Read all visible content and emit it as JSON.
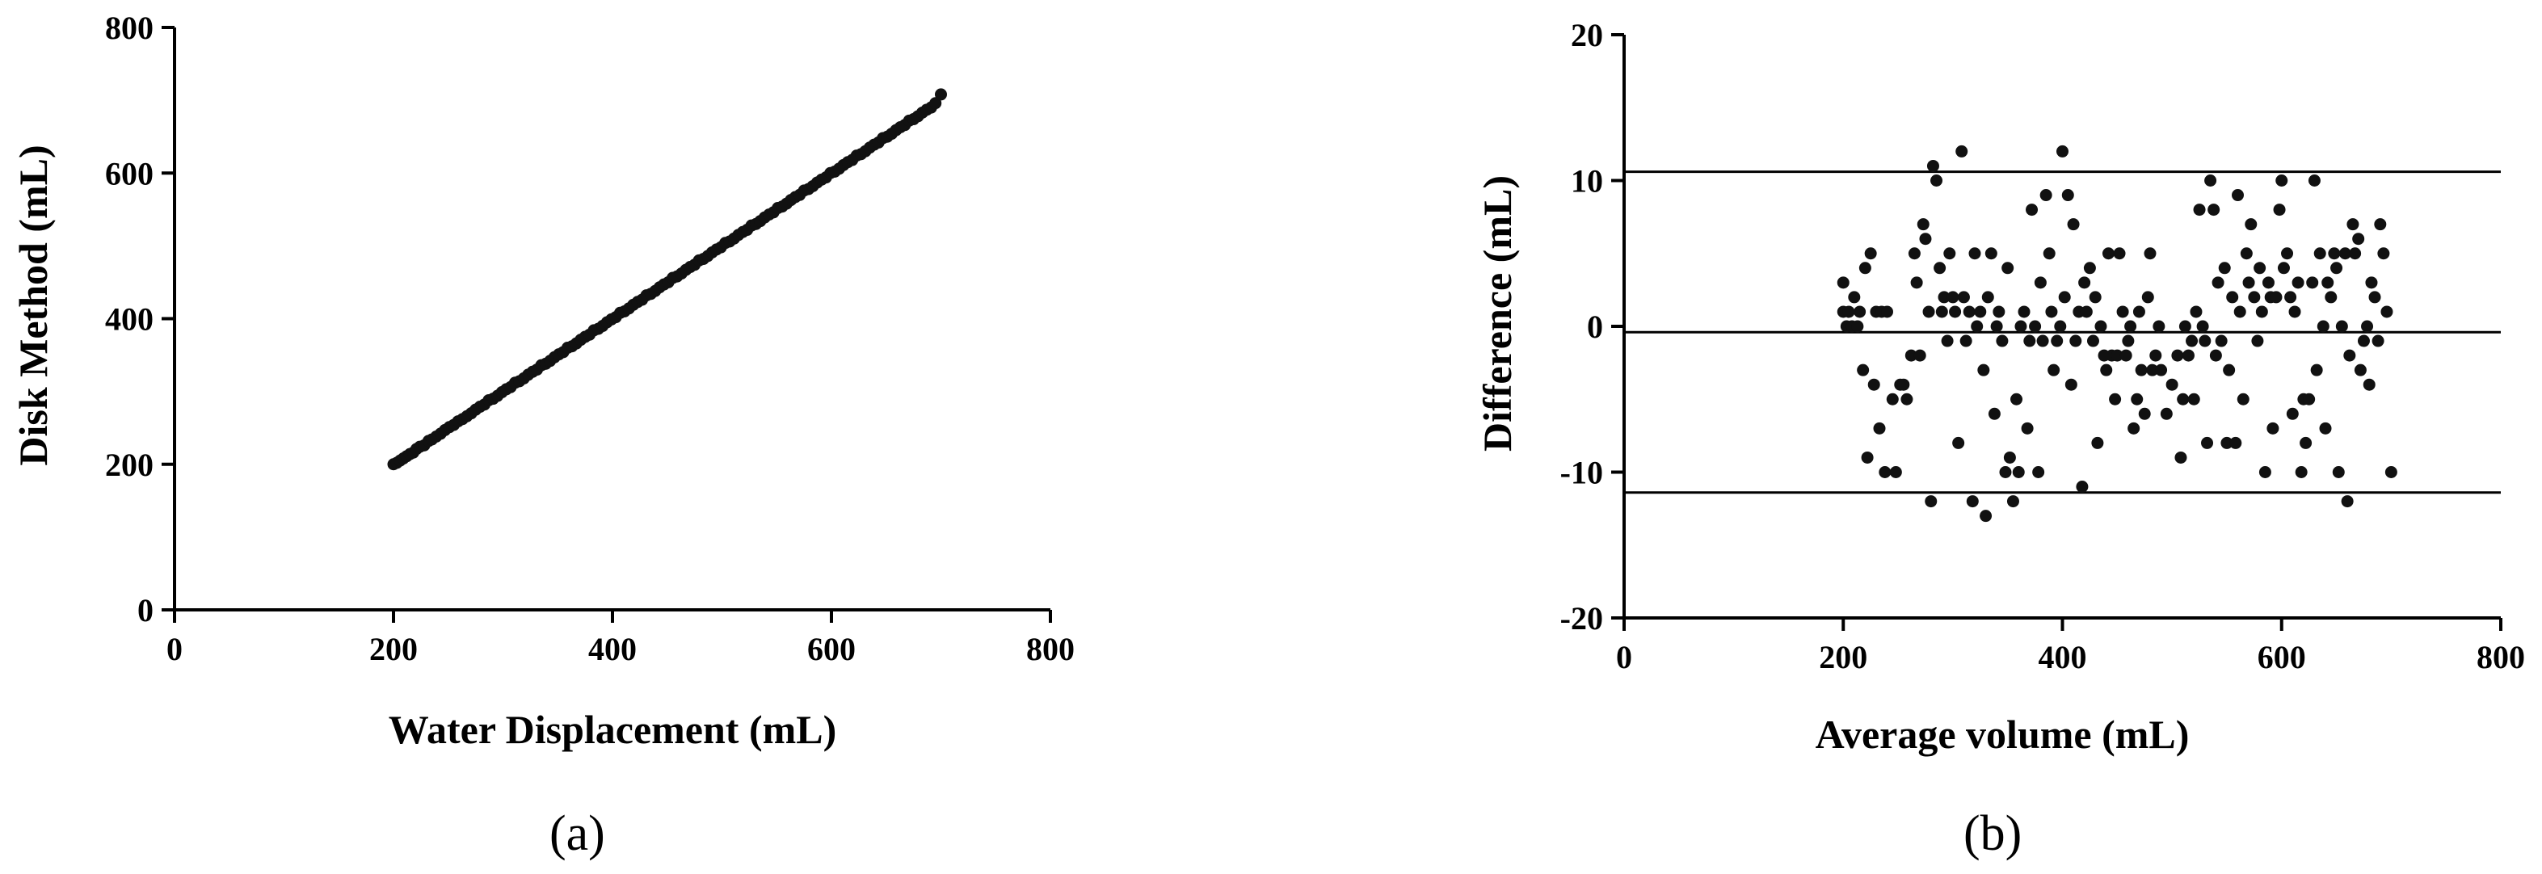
{
  "chart_data": [
    {
      "type": "scatter",
      "panel_label": "(a)",
      "title": "",
      "xlabel": "Water Displacement (mL)",
      "ylabel": "Disk Method (mL)",
      "xlim": [
        0,
        800
      ],
      "ylim": [
        0,
        800
      ],
      "xticks": [
        0,
        200,
        400,
        600,
        800
      ],
      "yticks": [
        0,
        200,
        400,
        600,
        800
      ],
      "grid": false,
      "color": "#111111",
      "points": [
        [
          200,
          200
        ],
        [
          203,
          202
        ],
        [
          206,
          205
        ],
        [
          209,
          208
        ],
        [
          212,
          211
        ],
        [
          215,
          214
        ],
        [
          218,
          216
        ],
        [
          221,
          221
        ],
        [
          224,
          224
        ],
        [
          228,
          226
        ],
        [
          232,
          232
        ],
        [
          235,
          234
        ],
        [
          239,
          238
        ],
        [
          243,
          242
        ],
        [
          247,
          247
        ],
        [
          251,
          251
        ],
        [
          255,
          254
        ],
        [
          259,
          259
        ],
        [
          263,
          262
        ],
        [
          267,
          266
        ],
        [
          271,
          270
        ],
        [
          275,
          275
        ],
        [
          279,
          279
        ],
        [
          283,
          282
        ],
        [
          287,
          288
        ],
        [
          291,
          290
        ],
        [
          295,
          294
        ],
        [
          299,
          299
        ],
        [
          303,
          303
        ],
        [
          307,
          306
        ],
        [
          311,
          312
        ],
        [
          315,
          314
        ],
        [
          319,
          318
        ],
        [
          323,
          323
        ],
        [
          327,
          327
        ],
        [
          331,
          330
        ],
        [
          335,
          336
        ],
        [
          339,
          338
        ],
        [
          343,
          342
        ],
        [
          347,
          347
        ],
        [
          351,
          351
        ],
        [
          355,
          354
        ],
        [
          359,
          360
        ],
        [
          363,
          362
        ],
        [
          367,
          366
        ],
        [
          371,
          371
        ],
        [
          375,
          375
        ],
        [
          379,
          378
        ],
        [
          383,
          384
        ],
        [
          387,
          386
        ],
        [
          391,
          390
        ],
        [
          395,
          395
        ],
        [
          399,
          399
        ],
        [
          403,
          402
        ],
        [
          407,
          408
        ],
        [
          411,
          410
        ],
        [
          415,
          414
        ],
        [
          419,
          419
        ],
        [
          423,
          423
        ],
        [
          427,
          426
        ],
        [
          431,
          432
        ],
        [
          435,
          434
        ],
        [
          439,
          438
        ],
        [
          443,
          443
        ],
        [
          447,
          447
        ],
        [
          451,
          450
        ],
        [
          455,
          456
        ],
        [
          459,
          458
        ],
        [
          463,
          462
        ],
        [
          467,
          467
        ],
        [
          471,
          471
        ],
        [
          475,
          474
        ],
        [
          479,
          480
        ],
        [
          483,
          482
        ],
        [
          487,
          486
        ],
        [
          491,
          491
        ],
        [
          495,
          495
        ],
        [
          499,
          498
        ],
        [
          503,
          504
        ],
        [
          507,
          506
        ],
        [
          511,
          510
        ],
        [
          515,
          515
        ],
        [
          519,
          519
        ],
        [
          523,
          522
        ],
        [
          527,
          528
        ],
        [
          531,
          530
        ],
        [
          535,
          534
        ],
        [
          539,
          539
        ],
        [
          543,
          543
        ],
        [
          547,
          546
        ],
        [
          551,
          552
        ],
        [
          555,
          554
        ],
        [
          559,
          558
        ],
        [
          563,
          563
        ],
        [
          567,
          567
        ],
        [
          571,
          570
        ],
        [
          575,
          576
        ],
        [
          579,
          578
        ],
        [
          583,
          582
        ],
        [
          587,
          587
        ],
        [
          591,
          591
        ],
        [
          595,
          594
        ],
        [
          599,
          600
        ],
        [
          603,
          602
        ],
        [
          607,
          606
        ],
        [
          611,
          611
        ],
        [
          615,
          615
        ],
        [
          619,
          618
        ],
        [
          623,
          624
        ],
        [
          627,
          626
        ],
        [
          631,
          630
        ],
        [
          635,
          635
        ],
        [
          639,
          639
        ],
        [
          643,
          642
        ],
        [
          647,
          648
        ],
        [
          651,
          650
        ],
        [
          655,
          654
        ],
        [
          659,
          659
        ],
        [
          663,
          663
        ],
        [
          667,
          666
        ],
        [
          671,
          672
        ],
        [
          675,
          674
        ],
        [
          679,
          678
        ],
        [
          683,
          683
        ],
        [
          687,
          687
        ],
        [
          691,
          690
        ],
        [
          695,
          696
        ],
        [
          700,
          708
        ]
      ]
    },
    {
      "type": "scatter",
      "panel_label": "(b)",
      "title": "",
      "xlabel": "Average volume (mL)",
      "ylabel": "Difference (mL)",
      "xlim": [
        0,
        800
      ],
      "ylim": [
        -20,
        20
      ],
      "xticks": [
        0,
        200,
        400,
        600,
        800
      ],
      "yticks": [
        -20,
        -10,
        0,
        10,
        20
      ],
      "grid": false,
      "color": "#111111",
      "reference_lines": [
        10.6,
        -0.4,
        -11.4
      ],
      "points": [
        [
          200,
          1
        ],
        [
          200,
          3
        ],
        [
          203,
          0
        ],
        [
          205,
          1
        ],
        [
          208,
          0
        ],
        [
          210,
          2
        ],
        [
          213,
          0
        ],
        [
          215,
          1
        ],
        [
          218,
          -3
        ],
        [
          220,
          4
        ],
        [
          222,
          -9
        ],
        [
          225,
          5
        ],
        [
          228,
          -4
        ],
        [
          230,
          1
        ],
        [
          233,
          -7
        ],
        [
          235,
          1
        ],
        [
          238,
          -10
        ],
        [
          240,
          1
        ],
        [
          245,
          -5
        ],
        [
          248,
          -10
        ],
        [
          252,
          -4
        ],
        [
          255,
          -4
        ],
        [
          258,
          -5
        ],
        [
          262,
          -2
        ],
        [
          265,
          5
        ],
        [
          267,
          3
        ],
        [
          270,
          -2
        ],
        [
          273,
          7
        ],
        [
          275,
          6
        ],
        [
          278,
          1
        ],
        [
          280,
          -12
        ],
        [
          282,
          11
        ],
        [
          285,
          10
        ],
        [
          288,
          4
        ],
        [
          290,
          1
        ],
        [
          292,
          2
        ],
        [
          295,
          -1
        ],
        [
          297,
          5
        ],
        [
          300,
          2
        ],
        [
          302,
          1
        ],
        [
          305,
          -8
        ],
        [
          308,
          12
        ],
        [
          310,
          2
        ],
        [
          312,
          -1
        ],
        [
          315,
          1
        ],
        [
          318,
          -12
        ],
        [
          320,
          5
        ],
        [
          322,
          0
        ],
        [
          325,
          1
        ],
        [
          328,
          -3
        ],
        [
          330,
          -13
        ],
        [
          332,
          2
        ],
        [
          335,
          5
        ],
        [
          338,
          -6
        ],
        [
          340,
          0
        ],
        [
          342,
          1
        ],
        [
          345,
          -1
        ],
        [
          348,
          -10
        ],
        [
          350,
          4
        ],
        [
          352,
          -9
        ],
        [
          355,
          -12
        ],
        [
          358,
          -5
        ],
        [
          360,
          -10
        ],
        [
          362,
          0
        ],
        [
          365,
          1
        ],
        [
          368,
          -7
        ],
        [
          370,
          -1
        ],
        [
          372,
          8
        ],
        [
          375,
          0
        ],
        [
          378,
          -10
        ],
        [
          380,
          3
        ],
        [
          382,
          -1
        ],
        [
          385,
          9
        ],
        [
          388,
          5
        ],
        [
          390,
          1
        ],
        [
          392,
          -3
        ],
        [
          395,
          -1
        ],
        [
          398,
          0
        ],
        [
          400,
          12
        ],
        [
          402,
          2
        ],
        [
          405,
          9
        ],
        [
          408,
          -4
        ],
        [
          410,
          7
        ],
        [
          412,
          -1
        ],
        [
          415,
          1
        ],
        [
          418,
          -11
        ],
        [
          420,
          3
        ],
        [
          422,
          1
        ],
        [
          425,
          4
        ],
        [
          428,
          -1
        ],
        [
          430,
          2
        ],
        [
          432,
          -8
        ],
        [
          435,
          0
        ],
        [
          438,
          -2
        ],
        [
          440,
          -3
        ],
        [
          442,
          5
        ],
        [
          445,
          -2
        ],
        [
          448,
          -5
        ],
        [
          450,
          -2
        ],
        [
          452,
          5
        ],
        [
          455,
          1
        ],
        [
          458,
          -2
        ],
        [
          460,
          -1
        ],
        [
          462,
          0
        ],
        [
          465,
          -7
        ],
        [
          468,
          -5
        ],
        [
          470,
          1
        ],
        [
          472,
          -3
        ],
        [
          475,
          -6
        ],
        [
          478,
          2
        ],
        [
          480,
          5
        ],
        [
          482,
          -3
        ],
        [
          485,
          -2
        ],
        [
          488,
          0
        ],
        [
          490,
          -3
        ],
        [
          495,
          -6
        ],
        [
          500,
          -4
        ],
        [
          505,
          -2
        ],
        [
          508,
          -9
        ],
        [
          510,
          -5
        ],
        [
          512,
          0
        ],
        [
          515,
          -2
        ],
        [
          518,
          -1
        ],
        [
          520,
          -5
        ],
        [
          522,
          1
        ],
        [
          525,
          8
        ],
        [
          528,
          0
        ],
        [
          530,
          -1
        ],
        [
          532,
          -8
        ],
        [
          535,
          10
        ],
        [
          538,
          8
        ],
        [
          540,
          -2
        ],
        [
          542,
          3
        ],
        [
          545,
          -1
        ],
        [
          548,
          4
        ],
        [
          550,
          -8
        ],
        [
          552,
          -3
        ],
        [
          555,
          2
        ],
        [
          558,
          -8
        ],
        [
          560,
          9
        ],
        [
          562,
          1
        ],
        [
          565,
          -5
        ],
        [
          568,
          5
        ],
        [
          570,
          3
        ],
        [
          572,
          7
        ],
        [
          575,
          2
        ],
        [
          578,
          -1
        ],
        [
          580,
          4
        ],
        [
          582,
          1
        ],
        [
          585,
          -10
        ],
        [
          588,
          3
        ],
        [
          590,
          2
        ],
        [
          592,
          -7
        ],
        [
          595,
          2
        ],
        [
          598,
          8
        ],
        [
          600,
          10
        ],
        [
          602,
          4
        ],
        [
          605,
          5
        ],
        [
          608,
          2
        ],
        [
          610,
          -6
        ],
        [
          612,
          1
        ],
        [
          615,
          3
        ],
        [
          618,
          -10
        ],
        [
          620,
          -5
        ],
        [
          622,
          -8
        ],
        [
          625,
          -5
        ],
        [
          628,
          3
        ],
        [
          630,
          10
        ],
        [
          632,
          -3
        ],
        [
          635,
          5
        ],
        [
          638,
          0
        ],
        [
          640,
          -7
        ],
        [
          642,
          3
        ],
        [
          645,
          2
        ],
        [
          648,
          5
        ],
        [
          650,
          4
        ],
        [
          652,
          -10
        ],
        [
          655,
          0
        ],
        [
          658,
          5
        ],
        [
          660,
          -12
        ],
        [
          662,
          -2
        ],
        [
          665,
          7
        ],
        [
          667,
          5
        ],
        [
          670,
          6
        ],
        [
          672,
          -3
        ],
        [
          675,
          -1
        ],
        [
          678,
          0
        ],
        [
          680,
          -4
        ],
        [
          682,
          3
        ],
        [
          685,
          2
        ],
        [
          688,
          -1
        ],
        [
          690,
          7
        ],
        [
          693,
          5
        ],
        [
          696,
          1
        ],
        [
          700,
          -10
        ]
      ]
    }
  ]
}
